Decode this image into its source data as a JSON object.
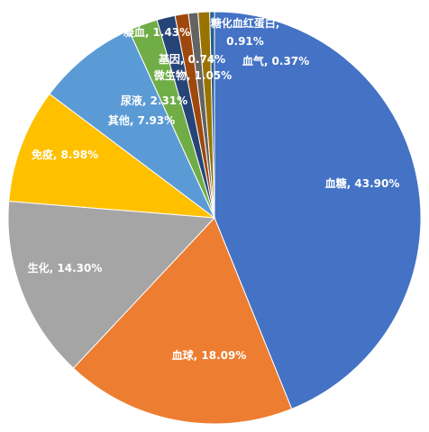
{
  "chart_data": {
    "type": "pie",
    "labels_show": "category, percent",
    "start_angle_deg": 0,
    "direction": "clockwise",
    "slices": [
      {
        "label": "血糖",
        "value": 43.9,
        "text": "血糖, 43.90%",
        "color": "#4472C4"
      },
      {
        "label": "血球",
        "value": 18.09,
        "text": "血球, 18.09%",
        "color": "#ED7D31"
      },
      {
        "label": "生化",
        "value": 14.3,
        "text": "生化, 14.30%",
        "color": "#A5A5A5"
      },
      {
        "label": "免疫",
        "value": 8.98,
        "text": "免疫, 8.98%",
        "color": "#FFC000"
      },
      {
        "label": "其他",
        "value": 7.93,
        "text": "其他, 7.93%",
        "color": "#5B9BD5"
      },
      {
        "label": "尿液",
        "value": 2.31,
        "text": "尿液, 2.31%",
        "color": "#70AD47"
      },
      {
        "label": "凝血",
        "value": 1.43,
        "text": "凝血, 1.43%",
        "color": "#264478"
      },
      {
        "label": "微生物",
        "value": 1.05,
        "text": "微生物, 1.05%",
        "color": "#9E480E"
      },
      {
        "label": "基因",
        "value": 0.74,
        "text": "基因, 0.74%",
        "color": "#636363"
      },
      {
        "label": "糖化血红蛋白",
        "value": 0.91,
        "text": "糖化血红蛋白,\n0.91%",
        "color": "#997300"
      },
      {
        "label": "血气",
        "value": 0.37,
        "text": "血气, 0.37%",
        "color": "#255E91"
      }
    ]
  }
}
